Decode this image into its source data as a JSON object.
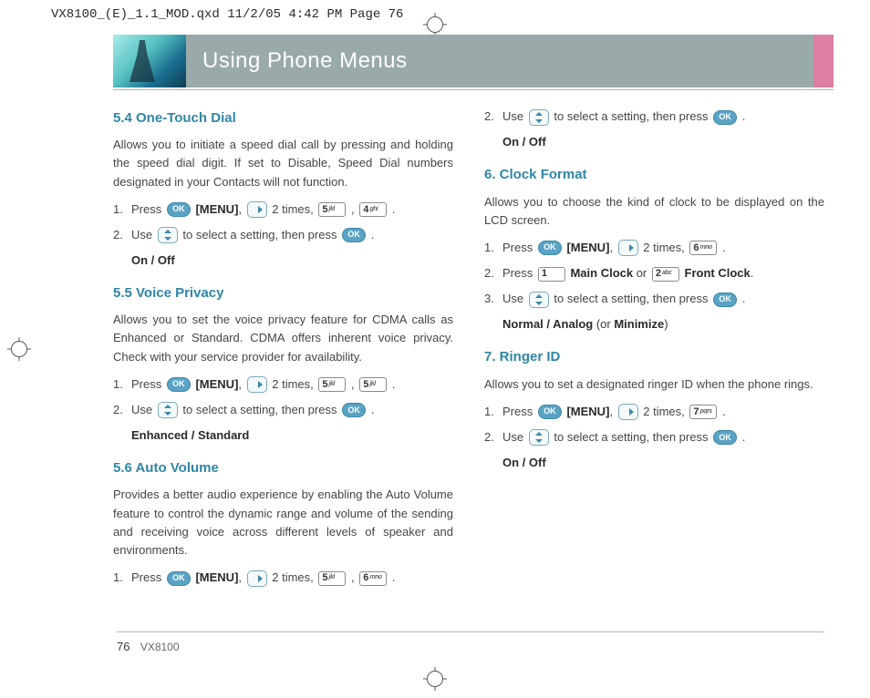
{
  "crop_header": "VX8100_(E)_1.1_MOD.qxd  11/2/05  4:42 PM  Page 76",
  "page_title": "Using Phone Menus",
  "colors": {
    "heading": "#2f86a6",
    "title_bar_bg": "#9aa9a9",
    "title_text": "#ffffff",
    "pink_tab": "#dd7fa3",
    "body_text": "#454545",
    "ok_key_bg": "#5aa3c4",
    "rule": "#b5b5b5"
  },
  "icons": {
    "ok_label": "OK"
  },
  "keys": {
    "1": {
      "digit": "1",
      "letters": ""
    },
    "2": {
      "digit": "2",
      "letters": "abc"
    },
    "4": {
      "digit": "4",
      "letters": "ghi"
    },
    "5": {
      "digit": "5",
      "letters": "jkl"
    },
    "6": {
      "digit": "6",
      "letters": "mno"
    },
    "7": {
      "digit": "7",
      "letters": "pqrs"
    }
  },
  "left": {
    "s54": {
      "title": "5.4 One-Touch Dial",
      "body": "Allows you to initiate a speed dial call by pressing and holding the speed dial digit. If set to Disable, Speed Dial numbers designated in your Contacts will not function.",
      "step1_a": "Press ",
      "step1_menu": "[MENU]",
      "step1_b": ", ",
      "step1_c": " 2 times, ",
      "step1_d": " , ",
      "step1_e": " .",
      "step2_a": "Use ",
      "step2_b": " to select a setting, then press ",
      "step2_c": " .",
      "options": "On / Off"
    },
    "s55": {
      "title": "5.5 Voice Privacy",
      "body": "Allows you to set the voice privacy feature for CDMA calls as Enhanced or Standard. CDMA offers inherent voice privacy. Check with your service provider for availability.",
      "step1_a": "Press ",
      "step1_menu": "[MENU]",
      "step1_b": ", ",
      "step1_c": " 2 times, ",
      "step1_d": " , ",
      "step1_e": " .",
      "step2_a": "Use ",
      "step2_b": " to select a setting, then press ",
      "step2_c": " .",
      "options": "Enhanced / Standard"
    },
    "s56": {
      "title": "5.6 Auto Volume",
      "body": "Provides a better audio experience by enabling the Auto Volume feature to control the dynamic range and volume of the sending and receiving voice across different levels of speaker and environments.",
      "step1_a": "Press ",
      "step1_menu": "[MENU]",
      "step1_b": ", ",
      "step1_c": " 2 times, ",
      "step1_d": " , ",
      "step1_e": " ."
    }
  },
  "right": {
    "cont": {
      "step2_a": "Use ",
      "step2_b": " to select a setting, then press ",
      "step2_c": " .",
      "options": "On / Off"
    },
    "s6": {
      "title": "6. Clock Format",
      "body": "Allows you to choose the kind of clock to be displayed on the LCD screen.",
      "step1_a": "Press ",
      "step1_menu": "[MENU]",
      "step1_b": ", ",
      "step1_c": " 2 times, ",
      "step1_d": " .",
      "step2_a": "Press ",
      "step2_main": " Main Clock",
      "step2_or": " or ",
      "step2_front": " Front Clock",
      "step2_end": ".",
      "step3_a": "Use ",
      "step3_b": " to select a setting, then press ",
      "step3_c": " .",
      "options_a": "Normal / Analog ",
      "options_b": "(or ",
      "options_c": "Minimize",
      "options_d": ")"
    },
    "s7": {
      "title": "7. Ringer ID",
      "body": "Allows you to set a designated ringer ID when the phone rings.",
      "step1_a": "Press ",
      "step1_menu": "[MENU]",
      "step1_b": ", ",
      "step1_c": " 2 times, ",
      "step1_d": " .",
      "step2_a": "Use ",
      "step2_b": " to select a setting, then press ",
      "step2_c": " .",
      "options": "On / Off"
    }
  },
  "footer": {
    "page_number": "76",
    "model": "VX8100"
  }
}
